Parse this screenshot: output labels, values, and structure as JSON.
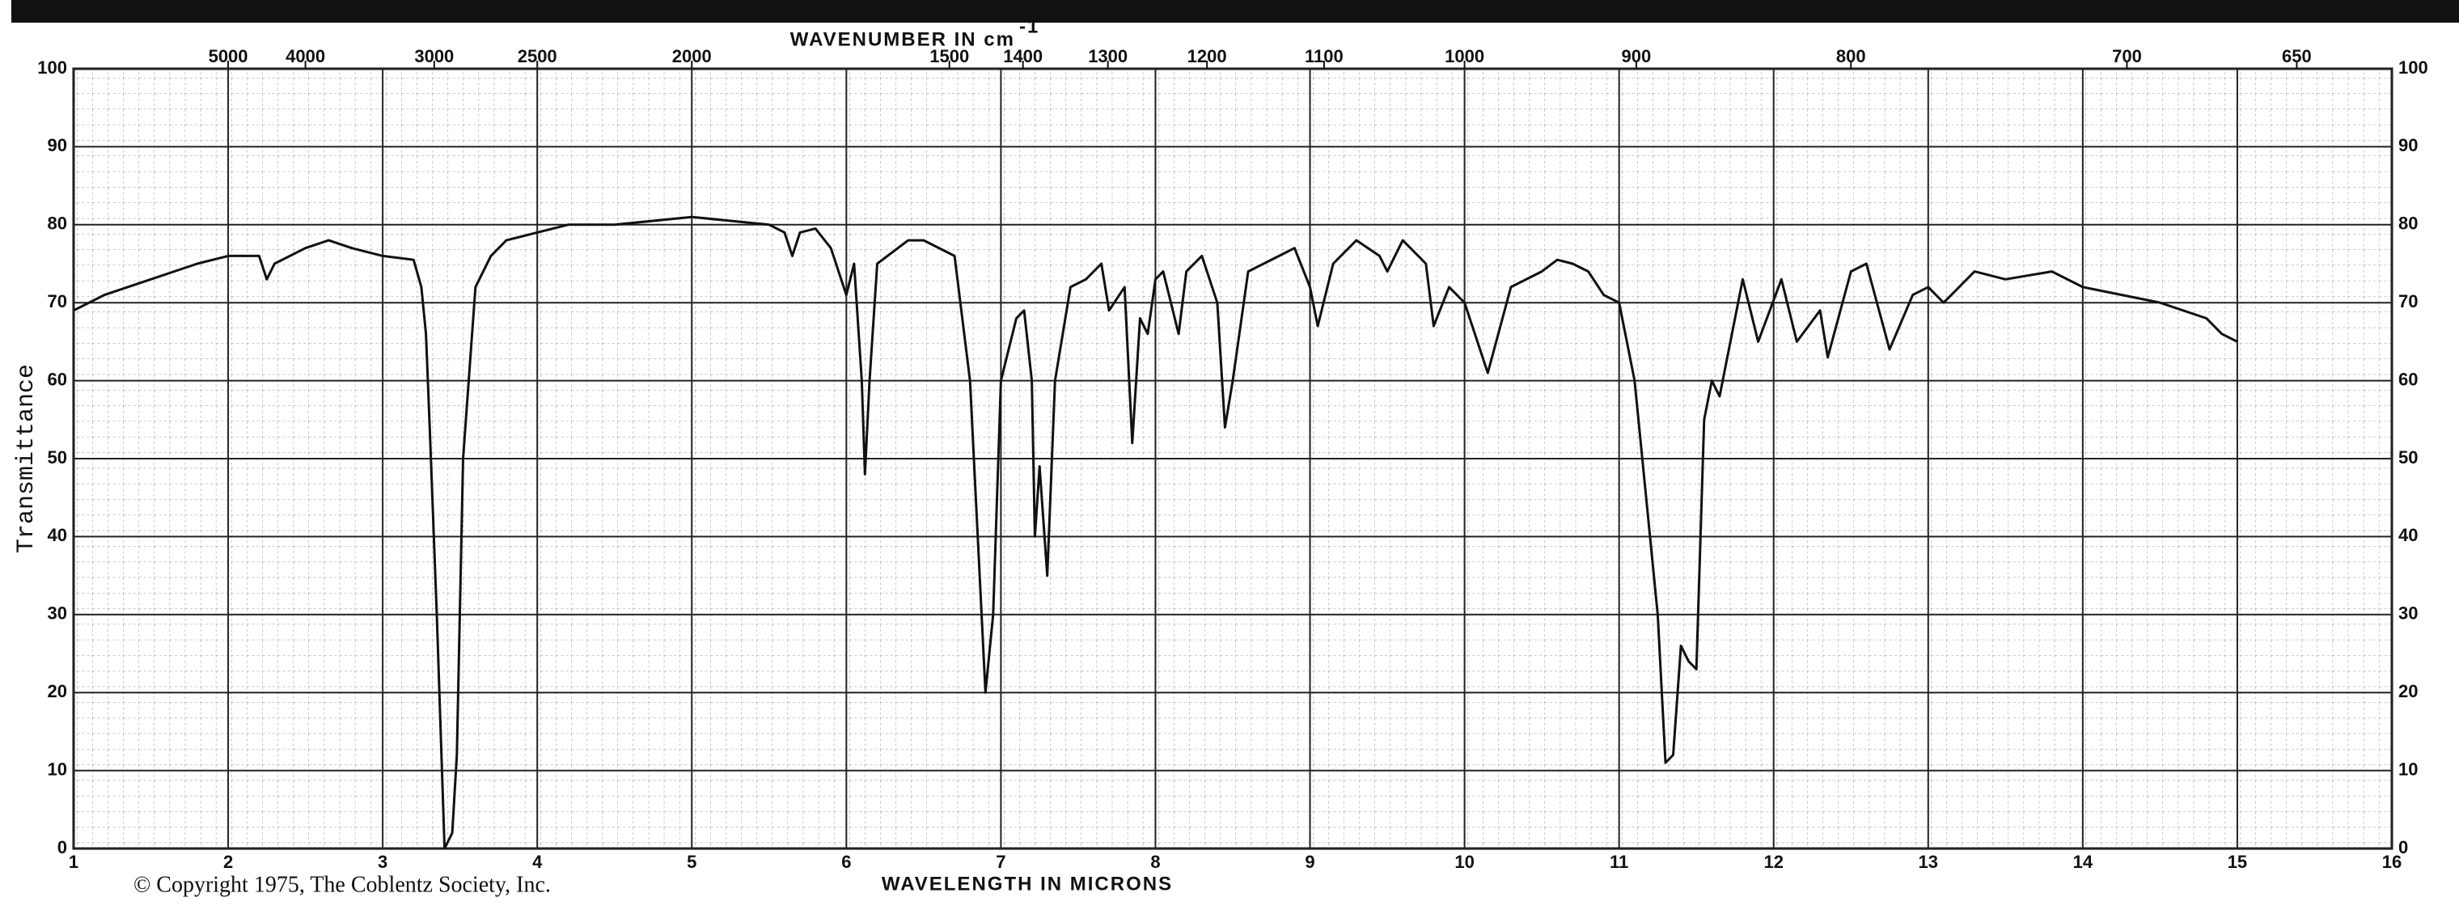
{
  "chart_data": {
    "type": "line",
    "x_label": "WAVELENGTH IN MICRONS",
    "y_label": "Transmittance",
    "x2_label": "WAVENUMBER IN cm",
    "x2_label_superscript": "-1",
    "copyright": "© Copyright 1975, The Coblentz Society, Inc.",
    "xlim": [
      1,
      16
    ],
    "ylim": [
      0,
      100
    ],
    "xticks": [
      1,
      2,
      3,
      4,
      5,
      6,
      7,
      8,
      9,
      10,
      11,
      12,
      13,
      14,
      15,
      16
    ],
    "yticks": [
      0,
      10,
      20,
      30,
      40,
      50,
      60,
      70,
      80,
      90,
      100
    ],
    "x2ticks": [
      5000,
      4000,
      3000,
      2500,
      2000,
      1500,
      1400,
      1300,
      1200,
      1100,
      1000,
      900,
      800,
      700,
      650
    ],
    "grid": true,
    "x": [
      1.0,
      1.2,
      1.5,
      1.8,
      2.0,
      2.2,
      2.25,
      2.3,
      2.5,
      2.65,
      2.8,
      3.0,
      3.2,
      3.25,
      3.28,
      3.3,
      3.35,
      3.4,
      3.45,
      3.48,
      3.52,
      3.6,
      3.7,
      3.8,
      4.0,
      4.2,
      4.5,
      5.0,
      5.5,
      5.6,
      5.65,
      5.7,
      5.8,
      5.9,
      6.0,
      6.05,
      6.1,
      6.12,
      6.15,
      6.2,
      6.4,
      6.5,
      6.7,
      6.8,
      6.9,
      6.95,
      7.0,
      7.1,
      7.15,
      7.2,
      7.22,
      7.25,
      7.3,
      7.35,
      7.45,
      7.55,
      7.65,
      7.7,
      7.8,
      7.85,
      7.9,
      7.95,
      8.0,
      8.05,
      8.15,
      8.2,
      8.3,
      8.4,
      8.45,
      8.5,
      8.6,
      8.8,
      8.9,
      9.0,
      9.05,
      9.15,
      9.3,
      9.45,
      9.5,
      9.6,
      9.75,
      9.8,
      9.9,
      10.0,
      10.1,
      10.15,
      10.3,
      10.5,
      10.6,
      10.7,
      10.8,
      10.9,
      11.0,
      11.1,
      11.25,
      11.3,
      11.35,
      11.4,
      11.45,
      11.5,
      11.55,
      11.6,
      11.65,
      11.8,
      11.9,
      12.05,
      12.15,
      12.3,
      12.35,
      12.5,
      12.6,
      12.75,
      12.9,
      13.0,
      13.1,
      13.3,
      13.5,
      13.8,
      14.0,
      14.5,
      14.8,
      14.9,
      15.0
    ],
    "series": [
      {
        "color": "#111111",
        "values": [
          69,
          71,
          73,
          75,
          76,
          76,
          73,
          75,
          77,
          78,
          77,
          76,
          75.5,
          72,
          66,
          56,
          30,
          0,
          2,
          12,
          50,
          72,
          76,
          78,
          79,
          80,
          80,
          81,
          80,
          79,
          76,
          79,
          79.5,
          77,
          71,
          75,
          60,
          48,
          60,
          75,
          78,
          78,
          76,
          60,
          20,
          30,
          60,
          68,
          69,
          60,
          40,
          49,
          35,
          60,
          72,
          73,
          75,
          69,
          72,
          52,
          68,
          66,
          73,
          74,
          66,
          74,
          76,
          70,
          54,
          60,
          74,
          76,
          77,
          72,
          67,
          75,
          78,
          76,
          74,
          78,
          75,
          67,
          72,
          70,
          64,
          61,
          72,
          74,
          75.5,
          75,
          74,
          71,
          70,
          60,
          30,
          11,
          12,
          26,
          24,
          23,
          55,
          60,
          58,
          73,
          65,
          73,
          65,
          69,
          63,
          74,
          75,
          64,
          71,
          72,
          70,
          74,
          73,
          74,
          72,
          70,
          68,
          66,
          65
        ]
      }
    ]
  }
}
